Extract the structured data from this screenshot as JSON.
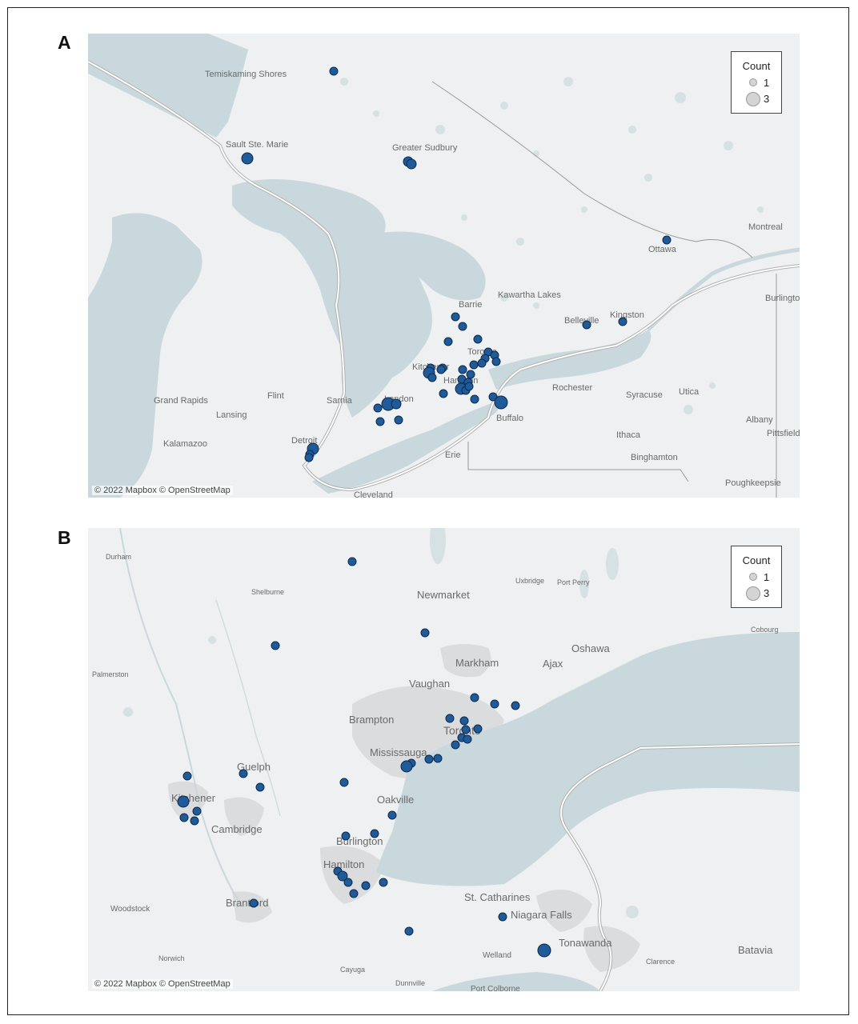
{
  "panels": [
    {
      "letter": "A",
      "legend": {
        "title": "Count",
        "items": [
          {
            "label": "1"
          },
          {
            "label": "3"
          }
        ]
      },
      "credit": "© 2022 Mapbox © OpenStreetMap",
      "places": [
        "Temiskaming Shores",
        "Sault Ste. Marie",
        "Greater Sudbury",
        "Ottawa",
        "Montreal",
        "Barrie",
        "Kawartha Lakes",
        "Belleville",
        "Kingston",
        "Burlington",
        "Toronto",
        "Kitchener",
        "Hamilton",
        "London",
        "Rochester",
        "Syracuse",
        "Utica",
        "Albany",
        "Pittsfield",
        "Ithaca",
        "Binghamton",
        "Buffalo",
        "Erie",
        "Grand Rapids",
        "Flint",
        "Sarnia",
        "Lansing",
        "Kalamazoo",
        "Detroit",
        "Cleveland",
        "Poughkeepsie"
      ],
      "legend_sizes": "point radius scales with count (1 to 3)"
    },
    {
      "letter": "B",
      "legend": {
        "title": "Count",
        "items": [
          {
            "label": "1"
          },
          {
            "label": "3"
          }
        ]
      },
      "credit": "© 2022 Mapbox © OpenStreetMap",
      "places": [
        "Durham",
        "Shelburne",
        "Newmarket",
        "Uxbridge",
        "Port Perry",
        "Oshawa",
        "Cobourg",
        "Palmerston",
        "Markham",
        "Ajax",
        "Vaughan",
        "Brampton",
        "Toronto",
        "Mississauga",
        "Guelph",
        "Kitchener",
        "Cambridge",
        "Oakville",
        "Burlington",
        "Hamilton",
        "St. Catharines",
        "Niagara Falls",
        "Woodstock",
        "Brantford",
        "Norwich",
        "Welland",
        "Tonawanda",
        "Batavia",
        "Clarence",
        "Cayuga",
        "Dunnville",
        "Port Colborne"
      ]
    }
  ],
  "colors": {
    "point": "#1f5a99",
    "point_outline": "#0d2a4c",
    "water": "#c9d8dc",
    "land": "#eef0f1",
    "urban": "#dadcde",
    "border": "#8a8a8a"
  }
}
